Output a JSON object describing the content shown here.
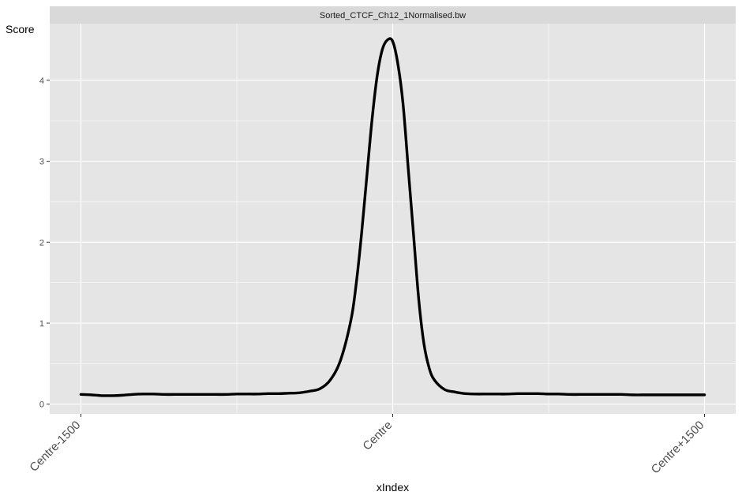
{
  "chart_data": {
    "type": "line",
    "facet_title": "Sorted_CTCF_Ch12_1Normalised.bw",
    "xlabel": "xIndex",
    "ylabel": "Score",
    "x_ticks": [
      {
        "value": -1500,
        "label": "Centre-1500"
      },
      {
        "value": 0,
        "label": "Centre"
      },
      {
        "value": 1500,
        "label": "Centre+1500"
      }
    ],
    "y_ticks": [
      0,
      1,
      2,
      3,
      4
    ],
    "xlim": [
      -1650,
      1650
    ],
    "ylim": [
      -0.12,
      4.7
    ],
    "grid": true,
    "colors": {
      "panel_bg": "#e5e5e5",
      "strip_bg": "#d9d9d9",
      "grid": "#ffffff",
      "line": "#000000"
    },
    "series": [
      {
        "x": [
          -1500,
          -1450,
          -1400,
          -1350,
          -1300,
          -1250,
          -1200,
          -1150,
          -1100,
          -1050,
          -1000,
          -950,
          -900,
          -850,
          -800,
          -750,
          -700,
          -650,
          -600,
          -550,
          -500,
          -450,
          -400,
          -350,
          -300,
          -250,
          -200,
          -175,
          -150,
          -125,
          -100,
          -75,
          -50,
          -25,
          0,
          25,
          50,
          75,
          100,
          125,
          150,
          175,
          200,
          250,
          300,
          350,
          400,
          450,
          500,
          550,
          600,
          650,
          700,
          750,
          800,
          850,
          900,
          950,
          1000,
          1050,
          1100,
          1150,
          1200,
          1250,
          1300,
          1350,
          1400,
          1450,
          1500
        ],
        "y": [
          0.12,
          0.115,
          0.105,
          0.105,
          0.11,
          0.12,
          0.125,
          0.125,
          0.12,
          0.12,
          0.12,
          0.12,
          0.12,
          0.12,
          0.12,
          0.125,
          0.125,
          0.125,
          0.13,
          0.13,
          0.135,
          0.14,
          0.16,
          0.19,
          0.3,
          0.55,
          1.05,
          1.5,
          2.1,
          2.8,
          3.5,
          4.05,
          4.38,
          4.5,
          4.48,
          4.2,
          3.7,
          2.9,
          2.1,
          1.3,
          0.75,
          0.45,
          0.3,
          0.18,
          0.15,
          0.13,
          0.125,
          0.125,
          0.125,
          0.125,
          0.13,
          0.13,
          0.13,
          0.125,
          0.125,
          0.12,
          0.12,
          0.12,
          0.12,
          0.12,
          0.12,
          0.115,
          0.115,
          0.115,
          0.115,
          0.115,
          0.115,
          0.115,
          0.115
        ]
      }
    ]
  }
}
